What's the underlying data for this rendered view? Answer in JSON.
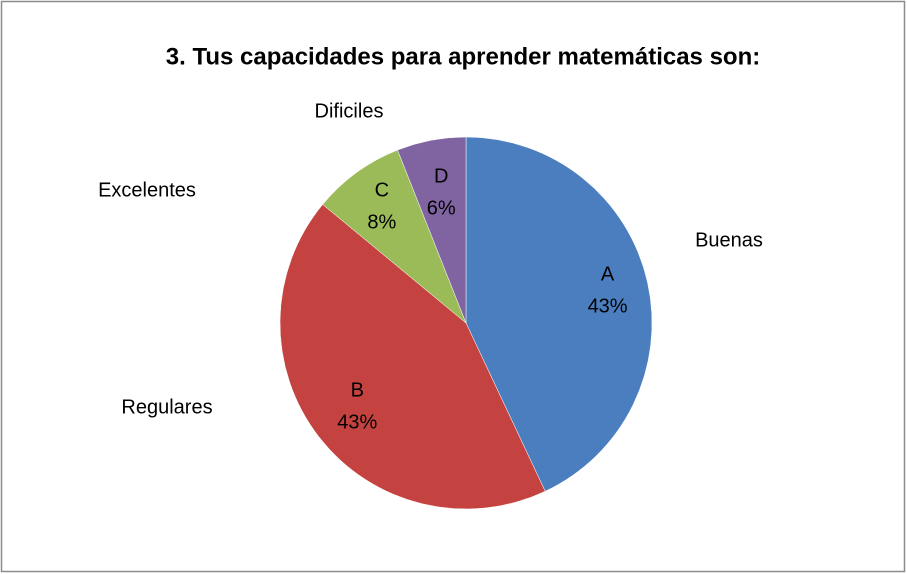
{
  "chart_data": {
    "type": "pie",
    "title": "3. Tus capacidades  para aprender matemáticas son:",
    "categories": [
      "A",
      "B",
      "C",
      "D"
    ],
    "values": [
      43,
      43,
      8,
      6
    ],
    "value_labels": [
      "43%",
      "43%",
      "8%",
      "6%"
    ],
    "labels": [
      "Buenas",
      "Regulares",
      "Excelentes",
      "Dificiles"
    ],
    "colors": [
      "#4a7ebf",
      "#c4423f",
      "#9bbb59",
      "#8064a2"
    ]
  }
}
